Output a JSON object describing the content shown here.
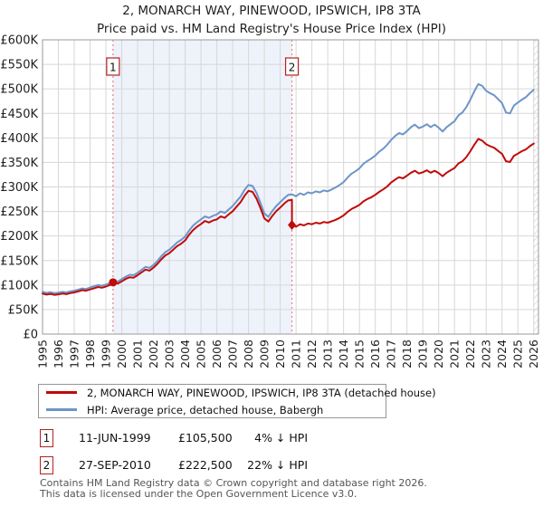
{
  "title": "2, MONARCH WAY, PINEWOOD, IPSWICH, IP8 3TA",
  "subtitle": "Price paid vs. HM Land Registry's House Price Index (HPI)",
  "legend": [
    {
      "label": "2, MONARCH WAY, PINEWOOD, IPSWICH, IP8 3TA (detached house)",
      "color": "#c00a0a"
    },
    {
      "label": "HPI: Average price, detached house, Babergh",
      "color": "#6d95c8"
    }
  ],
  "transactions": [
    {
      "num": "1",
      "date": "11-JUN-1999",
      "price": "£105,500",
      "hpi_diff": "4% ↓ HPI"
    },
    {
      "num": "2",
      "date": "27-SEP-2010",
      "price": "£222,500",
      "hpi_diff": "22% ↓ HPI"
    }
  ],
  "footer_line1": "Contains HM Land Registry data © Crown copyright and database right 2026.",
  "footer_line2": "This data is licensed under the Open Government Licence v3.0.",
  "chart_data": {
    "type": "line",
    "title": "2, MONARCH WAY, PINEWOOD, IPSWICH, IP8 3TA",
    "subtitle": "Price paid vs. HM Land Registry's House Price Index (HPI)",
    "xlim": [
      1995,
      2026.3
    ],
    "ylim": [
      0,
      600000
    ],
    "grid": true,
    "legend_position": "bottom",
    "x_ticks": [
      1995,
      1996,
      1997,
      1998,
      1999,
      2000,
      2001,
      2002,
      2003,
      2004,
      2005,
      2006,
      2007,
      2008,
      2009,
      2010,
      2011,
      2012,
      2013,
      2014,
      2015,
      2016,
      2017,
      2018,
      2019,
      2020,
      2021,
      2022,
      2023,
      2024,
      2025,
      2026
    ],
    "y_ticks": [
      {
        "v": 0,
        "label": "£0"
      },
      {
        "v": 50000,
        "label": "£50K"
      },
      {
        "v": 100000,
        "label": "£100K"
      },
      {
        "v": 150000,
        "label": "£150K"
      },
      {
        "v": 200000,
        "label": "£200K"
      },
      {
        "v": 250000,
        "label": "£250K"
      },
      {
        "v": 300000,
        "label": "£300K"
      },
      {
        "v": 350000,
        "label": "£350K"
      },
      {
        "v": 400000,
        "label": "£400K"
      },
      {
        "v": 450000,
        "label": "£450K"
      },
      {
        "v": 500000,
        "label": "£500K"
      },
      {
        "v": 550000,
        "label": "£550K"
      },
      {
        "v": 600000,
        "label": "£600K"
      }
    ],
    "colors": {
      "property_line": "#c00a0a",
      "hpi_line": "#6d95c8",
      "grid": "#d7d7d7",
      "frame": "#9a9a9a",
      "dashed_vline": "#ee8080",
      "span_fill": "#eef2fa",
      "hatch": "#c4c4c4",
      "badge_border": "#b22222"
    },
    "annotations": {
      "vlines": [
        {
          "x": 1999.447,
          "label": "1"
        },
        {
          "x": 2010.74,
          "label": "2"
        }
      ],
      "shaded_span": [
        1999.447,
        2010.74
      ],
      "future_hatch_start": 2026.0,
      "sale_points": [
        {
          "x": 1999.447,
          "y": 105500,
          "shape": "circle"
        },
        {
          "x": 2010.74,
          "y": 222500,
          "shape": "diamond"
        }
      ]
    },
    "series": [
      {
        "name": "HPI: Average price, detached house, Babergh",
        "color": "#6d95c8",
        "points": [
          [
            1995.0,
            86000
          ],
          [
            1995.25,
            84000
          ],
          [
            1995.5,
            85500
          ],
          [
            1995.75,
            83500
          ],
          [
            1996.0,
            84500
          ],
          [
            1996.25,
            86000
          ],
          [
            1996.5,
            85000
          ],
          [
            1996.75,
            87000
          ],
          [
            1997.0,
            88500
          ],
          [
            1997.25,
            90500
          ],
          [
            1997.5,
            93000
          ],
          [
            1997.75,
            92000
          ],
          [
            1998.0,
            95000
          ],
          [
            1998.25,
            97500
          ],
          [
            1998.5,
            100000
          ],
          [
            1998.75,
            98500
          ],
          [
            1999.0,
            101000
          ],
          [
            1999.25,
            104000
          ],
          [
            1999.447,
            110000
          ],
          [
            1999.5,
            109000
          ],
          [
            1999.75,
            107000
          ],
          [
            2000.0,
            112000
          ],
          [
            2000.25,
            117000
          ],
          [
            2000.5,
            121000
          ],
          [
            2000.75,
            120000
          ],
          [
            2001.0,
            125000
          ],
          [
            2001.25,
            131000
          ],
          [
            2001.5,
            137000
          ],
          [
            2001.75,
            135000
          ],
          [
            2002.0,
            141000
          ],
          [
            2002.25,
            149000
          ],
          [
            2002.5,
            159000
          ],
          [
            2002.75,
            167000
          ],
          [
            2003.0,
            172000
          ],
          [
            2003.25,
            179000
          ],
          [
            2003.5,
            187000
          ],
          [
            2003.75,
            192000
          ],
          [
            2004.0,
            199000
          ],
          [
            2004.25,
            211000
          ],
          [
            2004.5,
            221000
          ],
          [
            2004.75,
            228000
          ],
          [
            2005.0,
            234000
          ],
          [
            2005.25,
            240000
          ],
          [
            2005.5,
            237000
          ],
          [
            2005.75,
            241000
          ],
          [
            2006.0,
            244000
          ],
          [
            2006.25,
            250000
          ],
          [
            2006.5,
            247000
          ],
          [
            2006.75,
            254000
          ],
          [
            2007.0,
            261000
          ],
          [
            2007.25,
            271000
          ],
          [
            2007.5,
            280000
          ],
          [
            2007.75,
            294000
          ],
          [
            2008.0,
            304000
          ],
          [
            2008.25,
            302000
          ],
          [
            2008.5,
            288000
          ],
          [
            2008.75,
            268000
          ],
          [
            2009.0,
            246000
          ],
          [
            2009.25,
            239000
          ],
          [
            2009.5,
            251000
          ],
          [
            2009.75,
            261000
          ],
          [
            2010.0,
            269000
          ],
          [
            2010.25,
            277000
          ],
          [
            2010.5,
            284000
          ],
          [
            2010.74,
            285000
          ],
          [
            2011.0,
            281000
          ],
          [
            2011.25,
            287000
          ],
          [
            2011.5,
            284000
          ],
          [
            2011.75,
            289000
          ],
          [
            2012.0,
            287000
          ],
          [
            2012.25,
            291000
          ],
          [
            2012.5,
            289000
          ],
          [
            2012.75,
            293000
          ],
          [
            2013.0,
            291000
          ],
          [
            2013.25,
            295000
          ],
          [
            2013.5,
            299000
          ],
          [
            2013.75,
            304000
          ],
          [
            2014.0,
            310000
          ],
          [
            2014.25,
            319000
          ],
          [
            2014.5,
            327000
          ],
          [
            2014.75,
            332000
          ],
          [
            2015.0,
            338000
          ],
          [
            2015.25,
            347000
          ],
          [
            2015.5,
            353000
          ],
          [
            2015.75,
            358000
          ],
          [
            2016.0,
            364000
          ],
          [
            2016.25,
            372000
          ],
          [
            2016.5,
            378000
          ],
          [
            2016.75,
            386000
          ],
          [
            2017.0,
            396000
          ],
          [
            2017.25,
            404000
          ],
          [
            2017.5,
            410000
          ],
          [
            2017.75,
            407000
          ],
          [
            2018.0,
            414000
          ],
          [
            2018.25,
            422000
          ],
          [
            2018.5,
            427000
          ],
          [
            2018.75,
            420000
          ],
          [
            2019.0,
            423000
          ],
          [
            2019.25,
            428000
          ],
          [
            2019.5,
            422000
          ],
          [
            2019.75,
            427000
          ],
          [
            2020.0,
            421000
          ],
          [
            2020.25,
            413000
          ],
          [
            2020.5,
            422000
          ],
          [
            2020.75,
            428000
          ],
          [
            2021.0,
            434000
          ],
          [
            2021.25,
            446000
          ],
          [
            2021.5,
            452000
          ],
          [
            2021.75,
            463000
          ],
          [
            2022.0,
            478000
          ],
          [
            2022.25,
            495000
          ],
          [
            2022.5,
            510000
          ],
          [
            2022.75,
            506000
          ],
          [
            2023.0,
            496000
          ],
          [
            2023.25,
            491000
          ],
          [
            2023.5,
            487000
          ],
          [
            2023.75,
            479000
          ],
          [
            2024.0,
            471000
          ],
          [
            2024.25,
            452000
          ],
          [
            2024.5,
            450000
          ],
          [
            2024.75,
            466000
          ],
          [
            2025.0,
            472000
          ],
          [
            2025.25,
            478000
          ],
          [
            2025.5,
            483000
          ],
          [
            2025.75,
            491000
          ],
          [
            2026.0,
            498000
          ]
        ]
      },
      {
        "name": "2, MONARCH WAY, PINEWOOD, IPSWICH, IP8 3TA (detached house)",
        "color": "#c00a0a",
        "points": [
          [
            1995.0,
            82500
          ],
          [
            1995.25,
            80500
          ],
          [
            1995.5,
            82000
          ],
          [
            1995.75,
            80000
          ],
          [
            1996.0,
            81000
          ],
          [
            1996.25,
            82500
          ],
          [
            1996.5,
            81500
          ],
          [
            1996.75,
            83500
          ],
          [
            1997.0,
            85000
          ],
          [
            1997.25,
            87000
          ],
          [
            1997.5,
            89500
          ],
          [
            1997.75,
            88500
          ],
          [
            1998.0,
            91000
          ],
          [
            1998.25,
            93500
          ],
          [
            1998.5,
            96000
          ],
          [
            1998.75,
            94500
          ],
          [
            1999.0,
            97000
          ],
          [
            1999.25,
            100000
          ],
          [
            1999.447,
            105500
          ],
          [
            1999.5,
            104500
          ],
          [
            1999.75,
            103000
          ],
          [
            2000.0,
            107500
          ],
          [
            2000.25,
            112500
          ],
          [
            2000.5,
            116000
          ],
          [
            2000.75,
            115000
          ],
          [
            2001.0,
            120000
          ],
          [
            2001.25,
            126000
          ],
          [
            2001.5,
            131500
          ],
          [
            2001.75,
            129500
          ],
          [
            2002.0,
            135500
          ],
          [
            2002.25,
            143000
          ],
          [
            2002.5,
            152500
          ],
          [
            2002.75,
            160500
          ],
          [
            2003.0,
            165000
          ],
          [
            2003.25,
            172000
          ],
          [
            2003.5,
            179500
          ],
          [
            2003.75,
            184500
          ],
          [
            2004.0,
            191000
          ],
          [
            2004.25,
            202500
          ],
          [
            2004.5,
            212000
          ],
          [
            2004.75,
            219000
          ],
          [
            2005.0,
            224500
          ],
          [
            2005.25,
            230500
          ],
          [
            2005.5,
            227500
          ],
          [
            2005.75,
            231500
          ],
          [
            2006.0,
            234000
          ],
          [
            2006.25,
            240000
          ],
          [
            2006.5,
            237000
          ],
          [
            2006.75,
            244000
          ],
          [
            2007.0,
            250500
          ],
          [
            2007.25,
            260000
          ],
          [
            2007.5,
            269000
          ],
          [
            2007.75,
            282000
          ],
          [
            2008.0,
            292000
          ],
          [
            2008.25,
            290000
          ],
          [
            2008.5,
            276500
          ],
          [
            2008.75,
            257500
          ],
          [
            2009.0,
            236000
          ],
          [
            2009.25,
            229500
          ],
          [
            2009.5,
            241000
          ],
          [
            2009.75,
            250500
          ],
          [
            2010.0,
            258000
          ],
          [
            2010.25,
            266000
          ],
          [
            2010.5,
            272500
          ],
          [
            2010.74,
            273500
          ],
          [
            2010.74,
            222500
          ],
          [
            2011.0,
            219000
          ],
          [
            2011.25,
            224000
          ],
          [
            2011.5,
            221500
          ],
          [
            2011.75,
            225500
          ],
          [
            2012.0,
            224000
          ],
          [
            2012.25,
            227000
          ],
          [
            2012.5,
            225500
          ],
          [
            2012.75,
            228500
          ],
          [
            2013.0,
            227000
          ],
          [
            2013.25,
            230000
          ],
          [
            2013.5,
            233000
          ],
          [
            2013.75,
            237000
          ],
          [
            2014.0,
            242000
          ],
          [
            2014.25,
            249000
          ],
          [
            2014.5,
            255000
          ],
          [
            2014.75,
            259000
          ],
          [
            2015.0,
            263500
          ],
          [
            2015.25,
            270500
          ],
          [
            2015.5,
            275500
          ],
          [
            2015.75,
            279000
          ],
          [
            2016.0,
            284000
          ],
          [
            2016.25,
            290000
          ],
          [
            2016.5,
            295000
          ],
          [
            2016.75,
            301000
          ],
          [
            2017.0,
            309000
          ],
          [
            2017.25,
            315000
          ],
          [
            2017.5,
            320000
          ],
          [
            2017.75,
            317500
          ],
          [
            2018.0,
            323000
          ],
          [
            2018.25,
            329000
          ],
          [
            2018.5,
            333000
          ],
          [
            2018.75,
            327500
          ],
          [
            2019.0,
            330000
          ],
          [
            2019.25,
            334000
          ],
          [
            2019.5,
            329000
          ],
          [
            2019.75,
            333000
          ],
          [
            2020.0,
            328500
          ],
          [
            2020.25,
            322000
          ],
          [
            2020.5,
            329000
          ],
          [
            2020.75,
            334000
          ],
          [
            2021.0,
            338500
          ],
          [
            2021.25,
            348000
          ],
          [
            2021.5,
            352500
          ],
          [
            2021.75,
            361000
          ],
          [
            2022.0,
            373000
          ],
          [
            2022.25,
            386000
          ],
          [
            2022.5,
            398000
          ],
          [
            2022.75,
            394500
          ],
          [
            2023.0,
            387000
          ],
          [
            2023.25,
            383000
          ],
          [
            2023.5,
            380000
          ],
          [
            2023.75,
            373500
          ],
          [
            2024.0,
            367500
          ],
          [
            2024.25,
            352500
          ],
          [
            2024.5,
            351000
          ],
          [
            2024.75,
            363500
          ],
          [
            2025.0,
            368000
          ],
          [
            2025.25,
            373000
          ],
          [
            2025.5,
            376500
          ],
          [
            2025.75,
            383000
          ],
          [
            2026.0,
            388500
          ]
        ]
      }
    ]
  }
}
